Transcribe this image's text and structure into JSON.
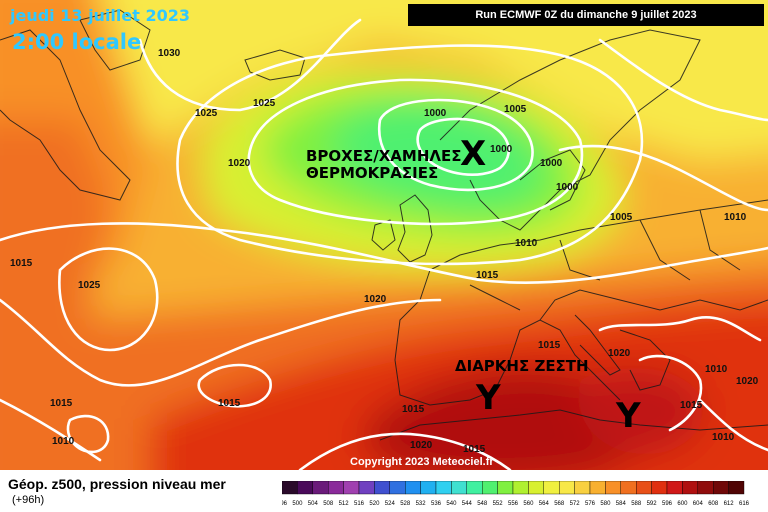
{
  "header": {
    "date": "jeudi 13 juillet 2023",
    "local_time": "2:00 locale",
    "run": "Run ECMWF 0Z du dimanche 9 juillet 2023"
  },
  "annotations": {
    "rain_line1": "ΒΡΟΧΕΣ/ΧΑΜΗΛΕΣ",
    "rain_line2": "ΘΕΡΜΟΚΡΑΣΙΕΣ",
    "heat": "ΔΙΑΡΚΗΣ ΖΕΣΤΗ",
    "low_symbol": "X",
    "high_symbol_1": "Y",
    "high_symbol_2": "Y"
  },
  "pressure_labels": [
    "1030",
    "1025",
    "1025",
    "1020",
    "1015",
    "1025",
    "1015",
    "1010",
    "1015",
    "1000",
    "1005",
    "1000",
    "1000",
    "1000",
    "1005",
    "1010",
    "1010",
    "1015",
    "1020",
    "1015",
    "1020",
    "1015",
    "1010",
    "1015",
    "1020",
    "1015",
    "1020",
    "1010"
  ],
  "footer": {
    "copyright": "Copyright 2023 Meteociel.fr",
    "legend_title": "Géop. z500, pression niveau mer",
    "legend_sub": "(+96h)"
  },
  "colorscale": {
    "labels": [
      "496",
      "500",
      "504",
      "508",
      "512",
      "516",
      "520",
      "524",
      "528",
      "532",
      "536",
      "540",
      "544",
      "548",
      "552",
      "556",
      "560",
      "564",
      "568",
      "572",
      "576",
      "580",
      "584",
      "588",
      "592",
      "596",
      "600",
      "604",
      "608",
      "612",
      "616"
    ],
    "colors": [
      "#2a0a2a",
      "#4a0a5a",
      "#6a1a7a",
      "#8a2a9a",
      "#a040b0",
      "#7040c0",
      "#4050d0",
      "#3070e0",
      "#2090f0",
      "#20b0f0",
      "#30d0f0",
      "#40e0d0",
      "#40f0a0",
      "#50f070",
      "#80f040",
      "#b0f030",
      "#d8f030",
      "#f0f040",
      "#f8e848",
      "#f8d040",
      "#f8b030",
      "#f89028",
      "#f07020",
      "#e85018",
      "#e03010",
      "#d01818",
      "#b01010",
      "#900c0c",
      "#700808",
      "#500404"
    ]
  }
}
